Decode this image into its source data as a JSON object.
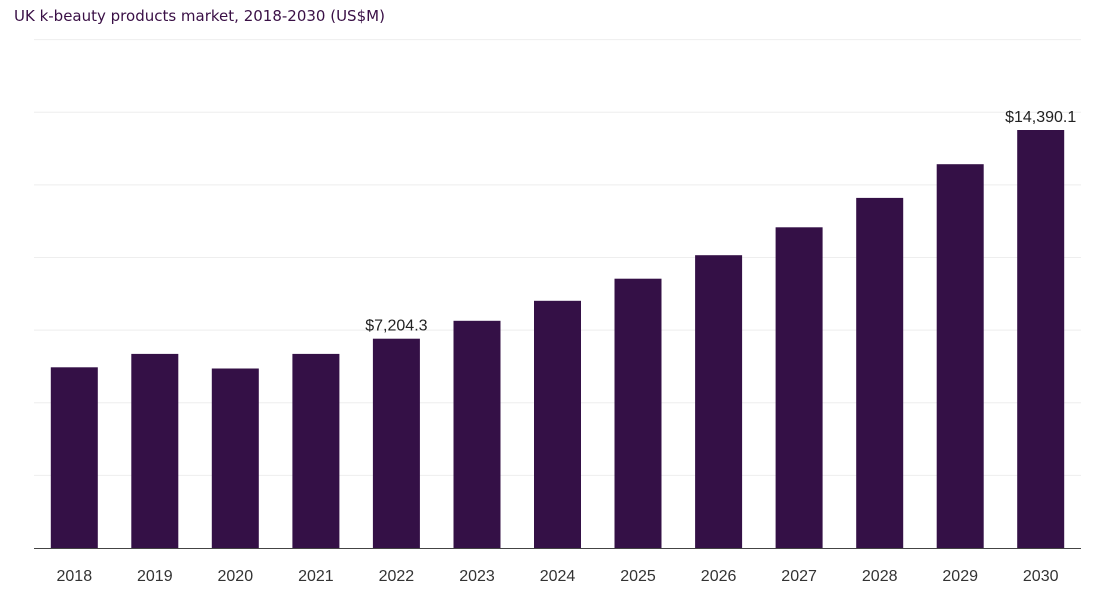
{
  "chart_data": {
    "type": "bar",
    "title": "UK k-beauty products market, 2018-2030 (US$M)",
    "xlabel": "",
    "ylabel": "",
    "categories": [
      "2018",
      "2019",
      "2020",
      "2021",
      "2022",
      "2023",
      "2024",
      "2025",
      "2026",
      "2027",
      "2028",
      "2029",
      "2030"
    ],
    "values": [
      6220,
      6680,
      6180,
      6680,
      7204.3,
      7820,
      8510,
      9270,
      10080,
      11040,
      12050,
      13210,
      14390.1
    ],
    "data_labels": [
      {
        "index": 4,
        "text": "$7,204.3"
      },
      {
        "index": 12,
        "text": "$14,390.1"
      }
    ],
    "ylim": [
      0,
      17500
    ],
    "grid": true,
    "legend": "none",
    "bar_color": "#341046",
    "grid_color": "#eeeeee",
    "axis_color": "#444444"
  }
}
